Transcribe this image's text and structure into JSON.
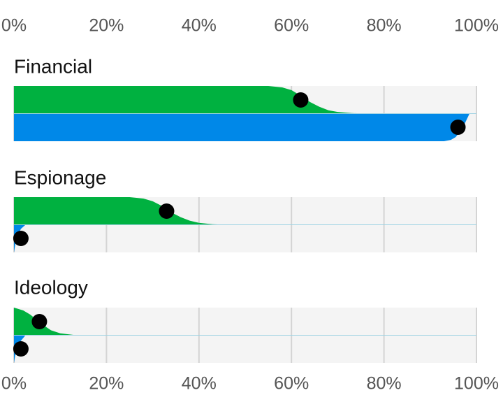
{
  "chart_data": {
    "type": "survival",
    "xlim": [
      0,
      100
    ],
    "xticks": [
      {
        "value": 0,
        "label": "0%"
      },
      {
        "value": 20,
        "label": "20%"
      },
      {
        "value": 40,
        "label": "40%"
      },
      {
        "value": 60,
        "label": "60%"
      },
      {
        "value": 80,
        "label": "80%"
      },
      {
        "value": 100,
        "label": "100%"
      }
    ],
    "grid": true,
    "panels": [
      {
        "title": "Financial",
        "series": [
          {
            "color": "#00b140",
            "x": [
              0,
              55,
              58,
              60,
              62,
              64,
              66,
              68,
              70,
              73,
              76,
              100
            ],
            "values": [
              1,
              1,
              0.95,
              0.85,
              0.65,
              0.42,
              0.25,
              0.12,
              0.06,
              0.02,
              0,
              0
            ],
            "point": 62
          },
          {
            "color": "#0088e8",
            "x": [
              0,
              93,
              94.5,
              95.5,
              96.5,
              97.5,
              98.5,
              100
            ],
            "values": [
              1,
              1,
              0.95,
              0.85,
              0.65,
              0.35,
              0,
              0
            ],
            "point": 96
          }
        ]
      },
      {
        "title": "Espionage",
        "series": [
          {
            "color": "#00b140",
            "x": [
              0,
              25,
              28,
              30,
              32,
              34,
              36,
              38,
              40,
              43,
              46,
              100
            ],
            "values": [
              1,
              1,
              0.95,
              0.85,
              0.68,
              0.45,
              0.28,
              0.15,
              0.07,
              0.02,
              0,
              0
            ],
            "point": 33
          },
          {
            "color": "#0088e8",
            "x": [
              0,
              0.3,
              0.8,
              1.5,
              2.5,
              100
            ],
            "values": [
              1,
              0.7,
              0.4,
              0.15,
              0,
              0
            ],
            "point": 1.5
          }
        ]
      },
      {
        "title": "Ideology",
        "series": [
          {
            "color": "#00b140",
            "x": [
              0,
              2,
              3.5,
              5,
              6.5,
              8,
              10,
              13,
              100
            ],
            "values": [
              1,
              0.9,
              0.75,
              0.55,
              0.35,
              0.18,
              0.07,
              0.01,
              0
            ],
            "point": 5.5
          },
          {
            "color": "#0088e8",
            "x": [
              0,
              0.3,
              0.8,
              1.5,
              2.5,
              100
            ],
            "values": [
              1,
              0.7,
              0.45,
              0.2,
              0,
              0
            ],
            "point": 1.5
          }
        ]
      }
    ]
  }
}
